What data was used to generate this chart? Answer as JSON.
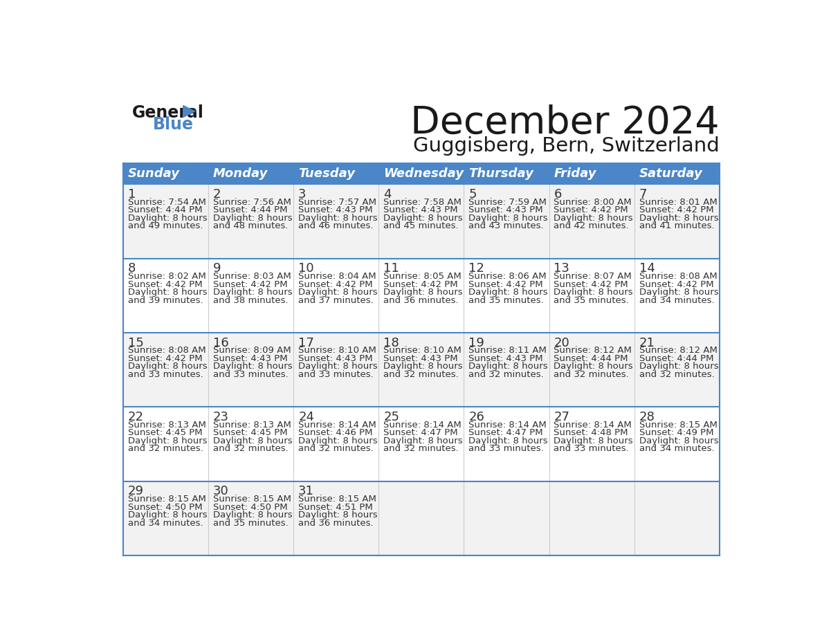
{
  "title": "December 2024",
  "subtitle": "Guggisberg, Bern, Switzerland",
  "days_of_week": [
    "Sunday",
    "Monday",
    "Tuesday",
    "Wednesday",
    "Thursday",
    "Friday",
    "Saturday"
  ],
  "header_bg": "#4a86c8",
  "header_text": "#ffffff",
  "cell_border_color": "#4a86c8",
  "inner_border_color": "#bbbbbb",
  "calendar_data": [
    [
      {
        "day": 1,
        "sunrise": "7:54 AM",
        "sunset": "4:44 PM",
        "daylight": "8 hours and 49 minutes."
      },
      {
        "day": 2,
        "sunrise": "7:56 AM",
        "sunset": "4:44 PM",
        "daylight": "8 hours and 48 minutes."
      },
      {
        "day": 3,
        "sunrise": "7:57 AM",
        "sunset": "4:43 PM",
        "daylight": "8 hours and 46 minutes."
      },
      {
        "day": 4,
        "sunrise": "7:58 AM",
        "sunset": "4:43 PM",
        "daylight": "8 hours and 45 minutes."
      },
      {
        "day": 5,
        "sunrise": "7:59 AM",
        "sunset": "4:43 PM",
        "daylight": "8 hours and 43 minutes."
      },
      {
        "day": 6,
        "sunrise": "8:00 AM",
        "sunset": "4:42 PM",
        "daylight": "8 hours and 42 minutes."
      },
      {
        "day": 7,
        "sunrise": "8:01 AM",
        "sunset": "4:42 PM",
        "daylight": "8 hours and 41 minutes."
      }
    ],
    [
      {
        "day": 8,
        "sunrise": "8:02 AM",
        "sunset": "4:42 PM",
        "daylight": "8 hours and 39 minutes."
      },
      {
        "day": 9,
        "sunrise": "8:03 AM",
        "sunset": "4:42 PM",
        "daylight": "8 hours and 38 minutes."
      },
      {
        "day": 10,
        "sunrise": "8:04 AM",
        "sunset": "4:42 PM",
        "daylight": "8 hours and 37 minutes."
      },
      {
        "day": 11,
        "sunrise": "8:05 AM",
        "sunset": "4:42 PM",
        "daylight": "8 hours and 36 minutes."
      },
      {
        "day": 12,
        "sunrise": "8:06 AM",
        "sunset": "4:42 PM",
        "daylight": "8 hours and 35 minutes."
      },
      {
        "day": 13,
        "sunrise": "8:07 AM",
        "sunset": "4:42 PM",
        "daylight": "8 hours and 35 minutes."
      },
      {
        "day": 14,
        "sunrise": "8:08 AM",
        "sunset": "4:42 PM",
        "daylight": "8 hours and 34 minutes."
      }
    ],
    [
      {
        "day": 15,
        "sunrise": "8:08 AM",
        "sunset": "4:42 PM",
        "daylight": "8 hours and 33 minutes."
      },
      {
        "day": 16,
        "sunrise": "8:09 AM",
        "sunset": "4:43 PM",
        "daylight": "8 hours and 33 minutes."
      },
      {
        "day": 17,
        "sunrise": "8:10 AM",
        "sunset": "4:43 PM",
        "daylight": "8 hours and 33 minutes."
      },
      {
        "day": 18,
        "sunrise": "8:10 AM",
        "sunset": "4:43 PM",
        "daylight": "8 hours and 32 minutes."
      },
      {
        "day": 19,
        "sunrise": "8:11 AM",
        "sunset": "4:43 PM",
        "daylight": "8 hours and 32 minutes."
      },
      {
        "day": 20,
        "sunrise": "8:12 AM",
        "sunset": "4:44 PM",
        "daylight": "8 hours and 32 minutes."
      },
      {
        "day": 21,
        "sunrise": "8:12 AM",
        "sunset": "4:44 PM",
        "daylight": "8 hours and 32 minutes."
      }
    ],
    [
      {
        "day": 22,
        "sunrise": "8:13 AM",
        "sunset": "4:45 PM",
        "daylight": "8 hours and 32 minutes."
      },
      {
        "day": 23,
        "sunrise": "8:13 AM",
        "sunset": "4:45 PM",
        "daylight": "8 hours and 32 minutes."
      },
      {
        "day": 24,
        "sunrise": "8:14 AM",
        "sunset": "4:46 PM",
        "daylight": "8 hours and 32 minutes."
      },
      {
        "day": 25,
        "sunrise": "8:14 AM",
        "sunset": "4:47 PM",
        "daylight": "8 hours and 32 minutes."
      },
      {
        "day": 26,
        "sunrise": "8:14 AM",
        "sunset": "4:47 PM",
        "daylight": "8 hours and 33 minutes."
      },
      {
        "day": 27,
        "sunrise": "8:14 AM",
        "sunset": "4:48 PM",
        "daylight": "8 hours and 33 minutes."
      },
      {
        "day": 28,
        "sunrise": "8:15 AM",
        "sunset": "4:49 PM",
        "daylight": "8 hours and 34 minutes."
      }
    ],
    [
      {
        "day": 29,
        "sunrise": "8:15 AM",
        "sunset": "4:50 PM",
        "daylight": "8 hours and 34 minutes."
      },
      {
        "day": 30,
        "sunrise": "8:15 AM",
        "sunset": "4:50 PM",
        "daylight": "8 hours and 35 minutes."
      },
      {
        "day": 31,
        "sunrise": "8:15 AM",
        "sunset": "4:51 PM",
        "daylight": "8 hours and 36 minutes."
      },
      null,
      null,
      null,
      null
    ]
  ]
}
